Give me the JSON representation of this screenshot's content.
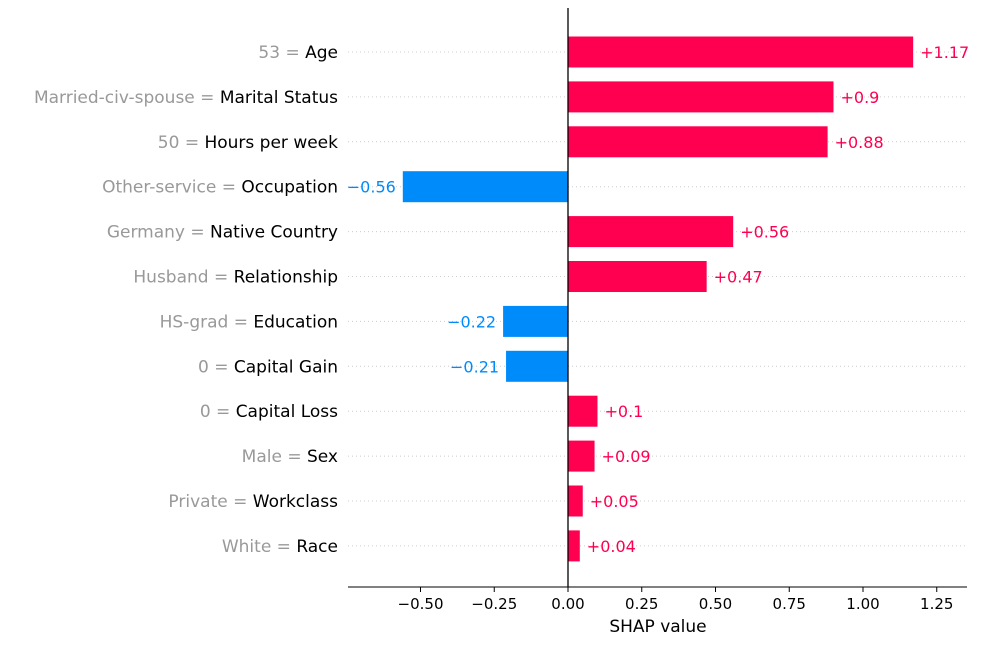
{
  "chart_data": {
    "type": "bar",
    "orientation": "horizontal",
    "xlabel": "SHAP value",
    "xlim": [
      -0.75,
      1.35
    ],
    "xticks": [
      -0.5,
      -0.25,
      0.0,
      0.25,
      0.5,
      0.75,
      1.0,
      1.25
    ],
    "xtick_labels": [
      "−0.50",
      "−0.25",
      "0.00",
      "0.25",
      "0.50",
      "0.75",
      "1.00",
      "1.25"
    ],
    "grid": "dotted horizontal row lines",
    "colors": {
      "positive": "#ff0051",
      "negative": "#008bfb",
      "muted": "#999999"
    },
    "bars": [
      {
        "value_text": "53",
        "feature": "Age",
        "shap": 1.17,
        "label": "+1.17"
      },
      {
        "value_text": "Married-civ-spouse",
        "feature": "Marital Status",
        "shap": 0.9,
        "label": "+0.9"
      },
      {
        "value_text": "50",
        "feature": "Hours per week",
        "shap": 0.88,
        "label": "+0.88"
      },
      {
        "value_text": "Other-service",
        "feature": "Occupation",
        "shap": -0.56,
        "label": "−0.56"
      },
      {
        "value_text": "Germany",
        "feature": "Native Country",
        "shap": 0.56,
        "label": "+0.56"
      },
      {
        "value_text": "Husband",
        "feature": "Relationship",
        "shap": 0.47,
        "label": "+0.47"
      },
      {
        "value_text": "HS-grad",
        "feature": "Education",
        "shap": -0.22,
        "label": "−0.22"
      },
      {
        "value_text": "0",
        "feature": "Capital Gain",
        "shap": -0.21,
        "label": "−0.21"
      },
      {
        "value_text": "0",
        "feature": "Capital Loss",
        "shap": 0.1,
        "label": "+0.1"
      },
      {
        "value_text": "Male",
        "feature": "Sex",
        "shap": 0.09,
        "label": "+0.09"
      },
      {
        "value_text": "Private",
        "feature": "Workclass",
        "shap": 0.05,
        "label": "+0.05"
      },
      {
        "value_text": "White",
        "feature": "Race",
        "shap": 0.04,
        "label": "+0.04"
      }
    ]
  }
}
